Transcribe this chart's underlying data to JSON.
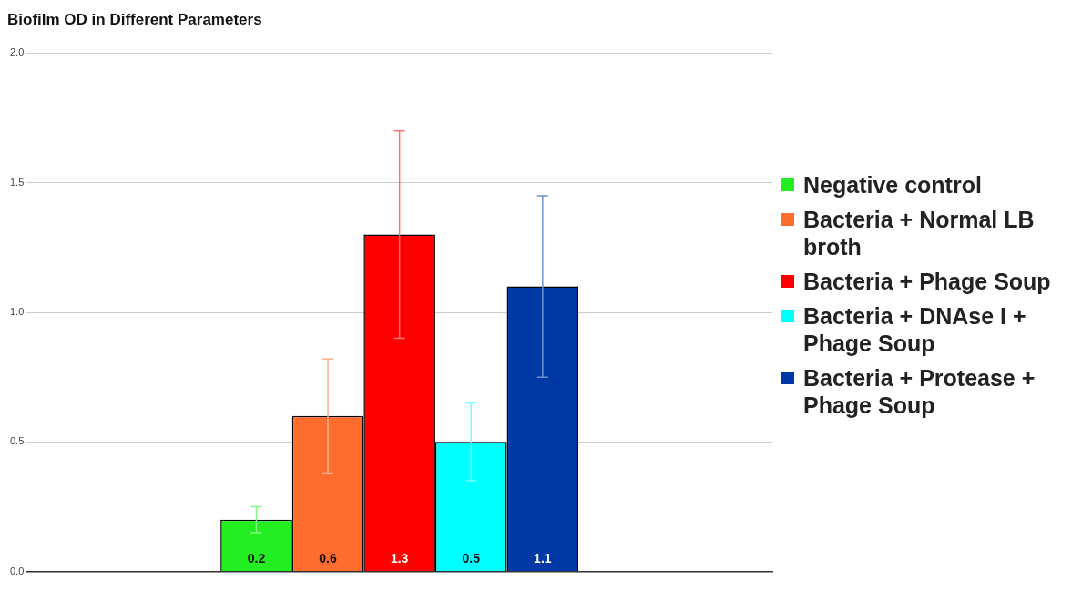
{
  "chart_data": {
    "type": "bar",
    "title": "Biofilm OD in Different Parameters",
    "categories": [
      null
    ],
    "series": [
      {
        "name": "Negative control",
        "color": "#22ee22",
        "values": [
          0.2
        ],
        "errors": [
          0.05
        ]
      },
      {
        "name": "Bacteria + Normal LB broth",
        "color": "#ff6d2e",
        "values": [
          0.6
        ],
        "errors": [
          0.22
        ]
      },
      {
        "name": "Bacteria + Phage Soup",
        "color": "#ff0000",
        "values": [
          1.3
        ],
        "errors": [
          0.4
        ]
      },
      {
        "name": "Bacteria + DNAse I + Phage Soup",
        "color": "#00ffff",
        "values": [
          0.5
        ],
        "errors": [
          0.15
        ]
      },
      {
        "name": "Bacteria + Protease + Phage Soup",
        "color": "#0039a6",
        "values": [
          1.1
        ],
        "errors": [
          0.35
        ]
      }
    ],
    "ylim": [
      0,
      2
    ],
    "yticks": [
      {
        "value": 0,
        "label": "0.0"
      },
      {
        "value": 0.5,
        "label": "0.5"
      },
      {
        "value": 1,
        "label": "1.0"
      },
      {
        "value": 1.5,
        "label": "1.5"
      },
      {
        "value": 2,
        "label": "2.0"
      }
    ],
    "grid": "y",
    "legend": "right",
    "data_labels": true
  }
}
